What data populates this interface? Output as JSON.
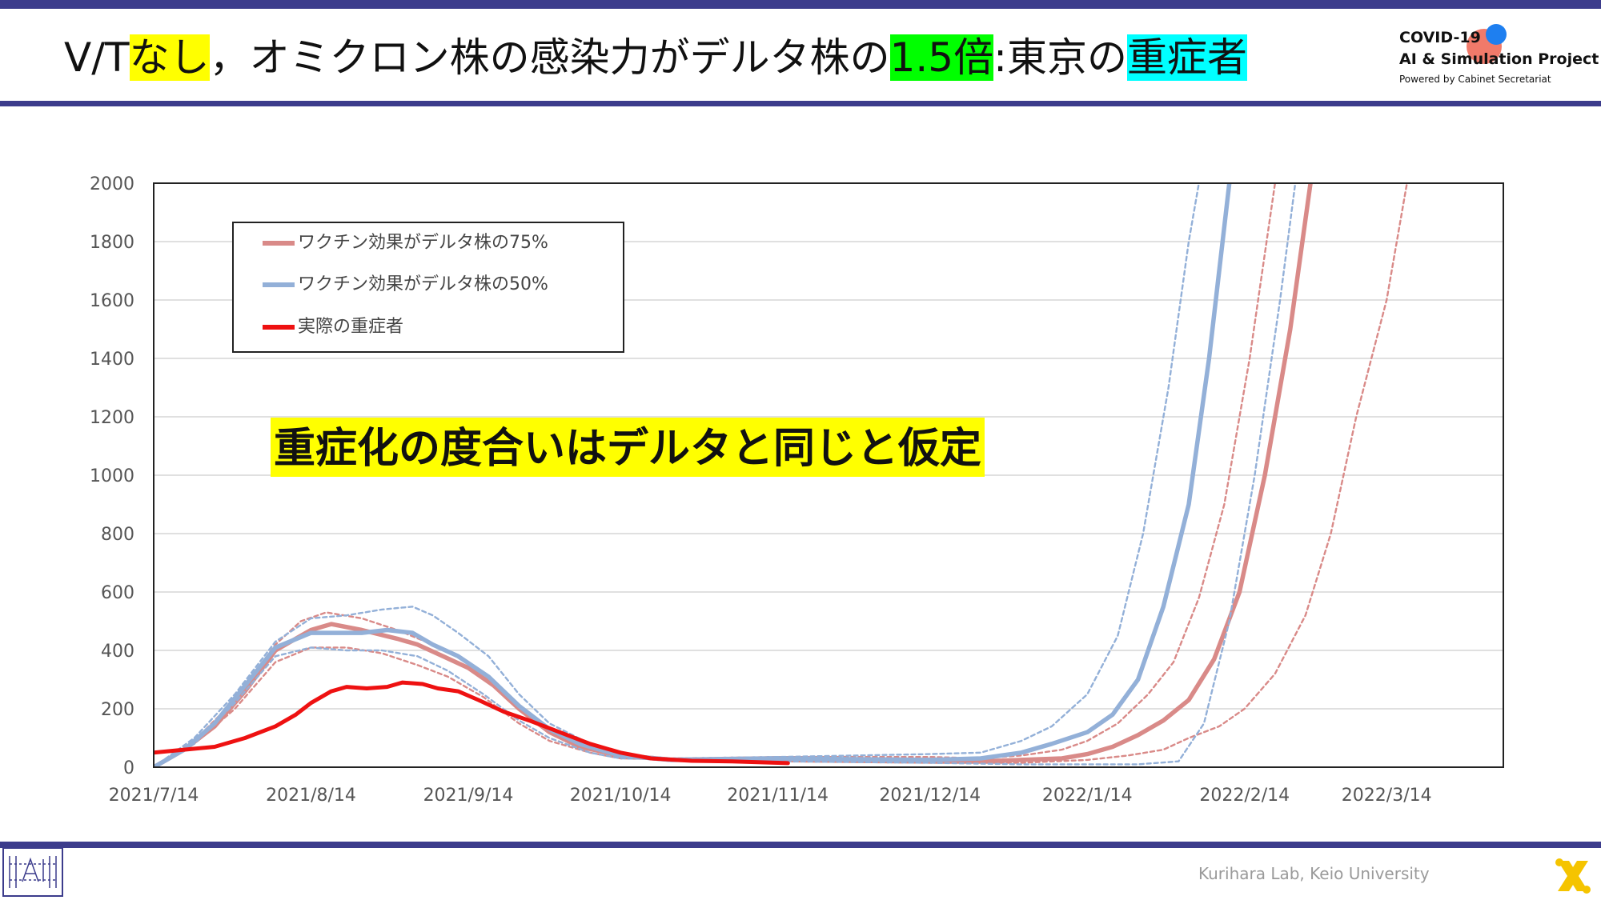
{
  "title": {
    "part1": "V/T",
    "part2": "なし",
    "part3": "，オミクロン株の感染力がデルタ株の",
    "part4": "1.5倍",
    "part5": ":東京の",
    "part6": "重症者"
  },
  "logo": {
    "line1": "COVID-19",
    "line2": "AI & Simulation Project",
    "line3": "Powered by Cabinet Secretariat"
  },
  "footer": {
    "credit": "Kurihara Lab, Keio University"
  },
  "colors": {
    "frame": "#3c3c8c",
    "series_75": "#d98a88",
    "series_50": "#93b0d8",
    "actual": "#ee1111",
    "highlight_yellow": "#ffff00",
    "highlight_green": "#00ff00",
    "highlight_cyan": "#00ffff"
  },
  "icons": [
    "lab-logo-icon",
    "x-logo-icon"
  ],
  "chart_data": {
    "type": "line",
    "annotation": "重症化の度合いはデルタと同じと仮定",
    "legend": [
      {
        "label": "ワクチン効果がデルタ株の75%",
        "color": "#d98a88"
      },
      {
        "label": "ワクチン効果がデルタ株の50%",
        "color": "#93b0d8"
      },
      {
        "label": "実際の重症者",
        "color": "#ee1111"
      }
    ],
    "legend_position": "top-left",
    "grid": true,
    "xlabel": "",
    "ylabel": "",
    "ylim": [
      0,
      2000
    ],
    "yticks": [
      0,
      200,
      400,
      600,
      800,
      1000,
      1200,
      1400,
      1600,
      1800,
      2000
    ],
    "x_ticks": [
      {
        "date": "2021-07-14",
        "label": "2021/7/14"
      },
      {
        "date": "2021-08-14",
        "label": "2021/8/14"
      },
      {
        "date": "2021-09-14",
        "label": "2021/9/14"
      },
      {
        "date": "2021-10-14",
        "label": "2021/10/14"
      },
      {
        "date": "2021-11-14",
        "label": "2021/11/14"
      },
      {
        "date": "2021-12-14",
        "label": "2021/12/14"
      },
      {
        "date": "2022-01-14",
        "label": "2022/1/14"
      },
      {
        "date": "2022-02-14",
        "label": "2022/2/14"
      },
      {
        "date": "2022-03-14",
        "label": "2022/3/14"
      }
    ],
    "xlim": [
      "2021-07-14",
      "2022-04-06"
    ],
    "series": [
      {
        "name": "ワクチン効果がデルタ株の75%",
        "style": "solid",
        "color": "#d98a88",
        "points": [
          [
            "2021-07-14",
            0
          ],
          [
            "2021-07-20",
            60
          ],
          [
            "2021-07-26",
            140
          ],
          [
            "2021-08-01",
            260
          ],
          [
            "2021-08-07",
            400
          ],
          [
            "2021-08-14",
            470
          ],
          [
            "2021-08-18",
            490
          ],
          [
            "2021-08-24",
            470
          ],
          [
            "2021-08-31",
            440
          ],
          [
            "2021-09-04",
            420
          ],
          [
            "2021-09-09",
            380
          ],
          [
            "2021-09-14",
            340
          ],
          [
            "2021-09-19",
            280
          ],
          [
            "2021-09-24",
            200
          ],
          [
            "2021-09-30",
            120
          ],
          [
            "2021-10-06",
            70
          ],
          [
            "2021-10-14",
            40
          ],
          [
            "2021-10-24",
            25
          ],
          [
            "2021-11-14",
            25
          ],
          [
            "2021-12-14",
            25
          ],
          [
            "2021-12-24",
            20
          ],
          [
            "2022-01-01",
            25
          ],
          [
            "2022-01-09",
            30
          ],
          [
            "2022-01-14",
            45
          ],
          [
            "2022-01-19",
            70
          ],
          [
            "2022-01-24",
            110
          ],
          [
            "2022-01-29",
            160
          ],
          [
            "2022-02-03",
            230
          ],
          [
            "2022-02-08",
            370
          ],
          [
            "2022-02-13",
            600
          ],
          [
            "2022-02-18",
            1000
          ],
          [
            "2022-02-23",
            1500
          ],
          [
            "2022-02-27",
            2000
          ]
        ]
      },
      {
        "name": "",
        "style": "dashed",
        "color": "#d98a88",
        "points": [
          [
            "2021-07-14",
            0
          ],
          [
            "2021-07-22",
            90
          ],
          [
            "2021-07-30",
            230
          ],
          [
            "2021-08-07",
            420
          ],
          [
            "2021-08-12",
            500
          ],
          [
            "2021-08-17",
            530
          ],
          [
            "2021-08-24",
            510
          ],
          [
            "2021-08-31",
            470
          ],
          [
            "2021-09-07",
            420
          ],
          [
            "2021-09-14",
            360
          ],
          [
            "2021-09-21",
            260
          ],
          [
            "2021-09-28",
            150
          ],
          [
            "2021-10-06",
            80
          ],
          [
            "2021-10-14",
            45
          ],
          [
            "2021-10-24",
            30
          ],
          [
            "2021-11-14",
            35
          ],
          [
            "2021-12-14",
            35
          ],
          [
            "2021-12-24",
            30
          ],
          [
            "2022-01-01",
            40
          ],
          [
            "2022-01-09",
            60
          ],
          [
            "2022-01-14",
            90
          ],
          [
            "2022-01-20",
            150
          ],
          [
            "2022-01-26",
            250
          ],
          [
            "2022-01-31",
            360
          ],
          [
            "2022-02-05",
            580
          ],
          [
            "2022-02-10",
            900
          ],
          [
            "2022-02-15",
            1400
          ],
          [
            "2022-02-20",
            2000
          ]
        ]
      },
      {
        "name": "",
        "style": "dashed",
        "color": "#d98a88",
        "points": [
          [
            "2021-07-14",
            0
          ],
          [
            "2021-07-22",
            80
          ],
          [
            "2021-07-30",
            200
          ],
          [
            "2021-08-07",
            360
          ],
          [
            "2021-08-14",
            410
          ],
          [
            "2021-08-21",
            410
          ],
          [
            "2021-08-28",
            390
          ],
          [
            "2021-09-04",
            350
          ],
          [
            "2021-09-10",
            310
          ],
          [
            "2021-09-17",
            240
          ],
          [
            "2021-09-24",
            150
          ],
          [
            "2021-09-30",
            90
          ],
          [
            "2021-10-08",
            50
          ],
          [
            "2021-10-14",
            30
          ],
          [
            "2021-11-14",
            20
          ],
          [
            "2021-12-14",
            15
          ],
          [
            "2022-01-01",
            15
          ],
          [
            "2022-01-14",
            25
          ],
          [
            "2022-01-22",
            40
          ],
          [
            "2022-01-29",
            60
          ],
          [
            "2022-02-03",
            100
          ],
          [
            "2022-02-09",
            140
          ],
          [
            "2022-02-14",
            200
          ],
          [
            "2022-02-20",
            320
          ],
          [
            "2022-02-26",
            520
          ],
          [
            "2022-03-03",
            800
          ],
          [
            "2022-03-08",
            1200
          ],
          [
            "2022-03-14",
            1600
          ],
          [
            "2022-03-18",
            2000
          ]
        ]
      },
      {
        "name": "ワクチン効果がデルタ株の50%",
        "style": "solid",
        "color": "#93b0d8",
        "points": [
          [
            "2021-07-14",
            0
          ],
          [
            "2021-07-20",
            60
          ],
          [
            "2021-07-26",
            150
          ],
          [
            "2021-08-01",
            280
          ],
          [
            "2021-08-07",
            410
          ],
          [
            "2021-08-14",
            460
          ],
          [
            "2021-08-19",
            460
          ],
          [
            "2021-08-24",
            460
          ],
          [
            "2021-08-29",
            470
          ],
          [
            "2021-09-03",
            460
          ],
          [
            "2021-09-07",
            420
          ],
          [
            "2021-09-12",
            380
          ],
          [
            "2021-09-18",
            310
          ],
          [
            "2021-09-24",
            210
          ],
          [
            "2021-09-30",
            130
          ],
          [
            "2021-10-06",
            80
          ],
          [
            "2021-10-14",
            40
          ],
          [
            "2021-10-24",
            25
          ],
          [
            "2021-11-14",
            30
          ],
          [
            "2021-12-14",
            25
          ],
          [
            "2021-12-24",
            30
          ],
          [
            "2022-01-01",
            50
          ],
          [
            "2022-01-07",
            80
          ],
          [
            "2022-01-14",
            120
          ],
          [
            "2022-01-19",
            180
          ],
          [
            "2022-01-24",
            300
          ],
          [
            "2022-01-29",
            550
          ],
          [
            "2022-02-03",
            900
          ],
          [
            "2022-02-07",
            1400
          ],
          [
            "2022-02-11",
            2000
          ]
        ]
      },
      {
        "name": "",
        "style": "dashed",
        "color": "#93b0d8",
        "points": [
          [
            "2021-07-14",
            0
          ],
          [
            "2021-07-22",
            100
          ],
          [
            "2021-07-30",
            250
          ],
          [
            "2021-08-07",
            430
          ],
          [
            "2021-08-14",
            510
          ],
          [
            "2021-08-21",
            520
          ],
          [
            "2021-08-28",
            540
          ],
          [
            "2021-09-03",
            550
          ],
          [
            "2021-09-07",
            520
          ],
          [
            "2021-09-12",
            460
          ],
          [
            "2021-09-18",
            380
          ],
          [
            "2021-09-24",
            250
          ],
          [
            "2021-09-30",
            150
          ],
          [
            "2021-10-08",
            80
          ],
          [
            "2021-10-14",
            45
          ],
          [
            "2021-10-24",
            30
          ],
          [
            "2021-11-14",
            35
          ],
          [
            "2021-12-14",
            45
          ],
          [
            "2021-12-24",
            50
          ],
          [
            "2022-01-01",
            90
          ],
          [
            "2022-01-07",
            140
          ],
          [
            "2022-01-14",
            250
          ],
          [
            "2022-01-20",
            450
          ],
          [
            "2022-01-25",
            800
          ],
          [
            "2022-01-30",
            1300
          ],
          [
            "2022-02-03",
            1800
          ],
          [
            "2022-02-05",
            2000
          ]
        ]
      },
      {
        "name": "",
        "style": "dashed",
        "color": "#93b0d8",
        "points": [
          [
            "2021-07-14",
            0
          ],
          [
            "2021-07-22",
            80
          ],
          [
            "2021-07-30",
            220
          ],
          [
            "2021-08-07",
            380
          ],
          [
            "2021-08-14",
            410
          ],
          [
            "2021-08-21",
            400
          ],
          [
            "2021-08-28",
            400
          ],
          [
            "2021-09-04",
            380
          ],
          [
            "2021-09-10",
            330
          ],
          [
            "2021-09-17",
            250
          ],
          [
            "2021-09-24",
            160
          ],
          [
            "2021-09-30",
            100
          ],
          [
            "2021-10-08",
            50
          ],
          [
            "2021-10-14",
            30
          ],
          [
            "2021-11-14",
            20
          ],
          [
            "2021-12-14",
            15
          ],
          [
            "2022-01-01",
            10
          ],
          [
            "2022-01-14",
            10
          ],
          [
            "2022-01-24",
            10
          ],
          [
            "2022-02-01",
            20
          ],
          [
            "2022-02-06",
            150
          ],
          [
            "2022-02-11",
            500
          ],
          [
            "2022-02-16",
            1000
          ],
          [
            "2022-02-21",
            1600
          ],
          [
            "2022-02-24",
            2000
          ]
        ]
      },
      {
        "name": "実際の重症者",
        "style": "solid",
        "color": "#ee1111",
        "points": [
          [
            "2021-07-14",
            50
          ],
          [
            "2021-07-20",
            60
          ],
          [
            "2021-07-26",
            70
          ],
          [
            "2021-08-01",
            100
          ],
          [
            "2021-08-07",
            140
          ],
          [
            "2021-08-11",
            180
          ],
          [
            "2021-08-14",
            220
          ],
          [
            "2021-08-18",
            260
          ],
          [
            "2021-08-21",
            275
          ],
          [
            "2021-08-25",
            270
          ],
          [
            "2021-08-29",
            275
          ],
          [
            "2021-09-01",
            290
          ],
          [
            "2021-09-05",
            285
          ],
          [
            "2021-09-08",
            270
          ],
          [
            "2021-09-12",
            260
          ],
          [
            "2021-09-16",
            230
          ],
          [
            "2021-09-21",
            190
          ],
          [
            "2021-09-26",
            160
          ],
          [
            "2021-10-02",
            120
          ],
          [
            "2021-10-08",
            80
          ],
          [
            "2021-10-14",
            50
          ],
          [
            "2021-10-20",
            30
          ],
          [
            "2021-10-28",
            22
          ],
          [
            "2021-11-05",
            20
          ],
          [
            "2021-11-14",
            15
          ],
          [
            "2021-11-16",
            14
          ]
        ]
      }
    ]
  }
}
